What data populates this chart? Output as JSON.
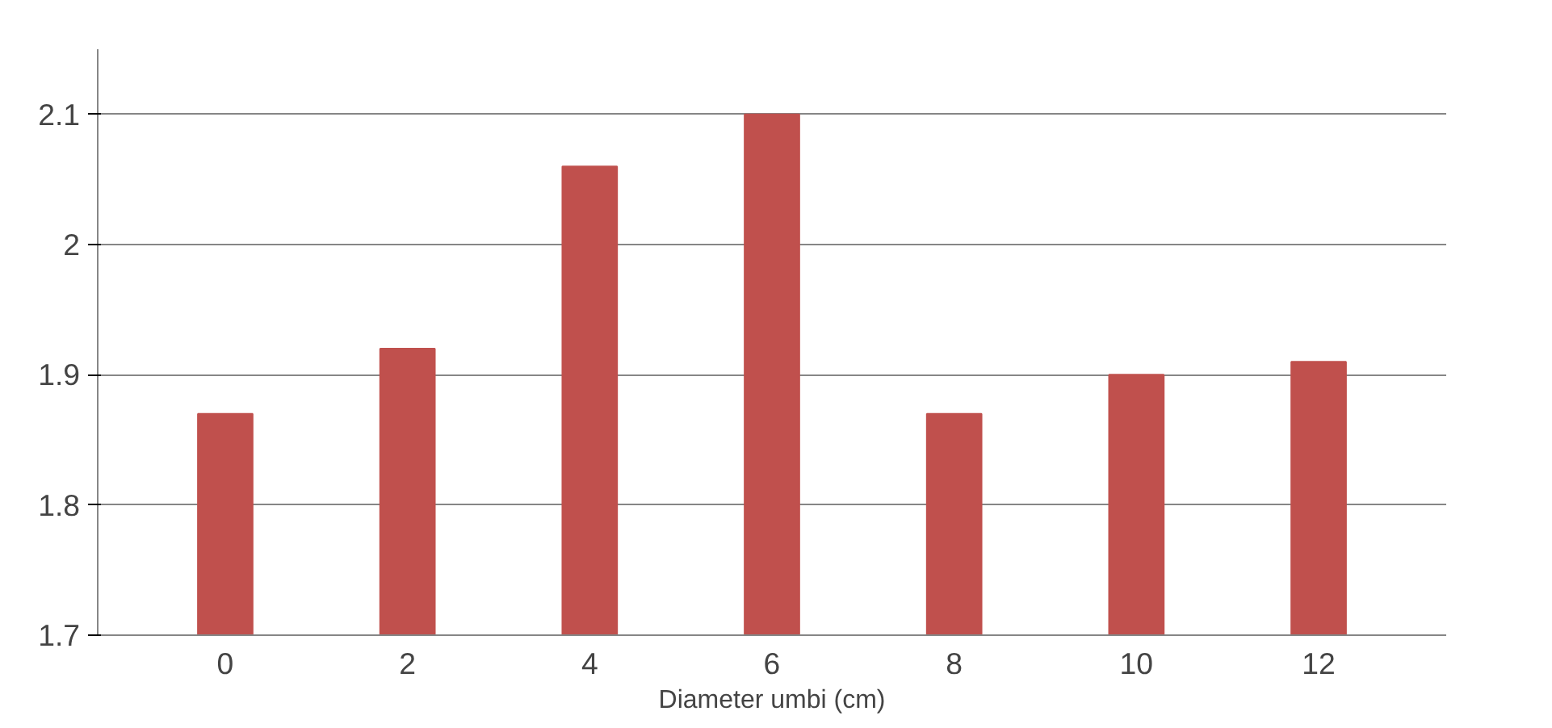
{
  "chart_data": {
    "type": "bar",
    "xlabel": "Diameter umbi (cm)",
    "categories": [
      "0",
      "2",
      "4",
      "6",
      "8",
      "10",
      "12"
    ],
    "values": [
      1.87,
      1.92,
      2.06,
      2.1,
      1.87,
      1.9,
      1.91
    ],
    "color": "#c0504d",
    "ylim": [
      1.7,
      2.15
    ],
    "yticks": [
      1.7,
      1.8,
      1.9,
      2,
      2.1
    ],
    "grid": "y"
  }
}
